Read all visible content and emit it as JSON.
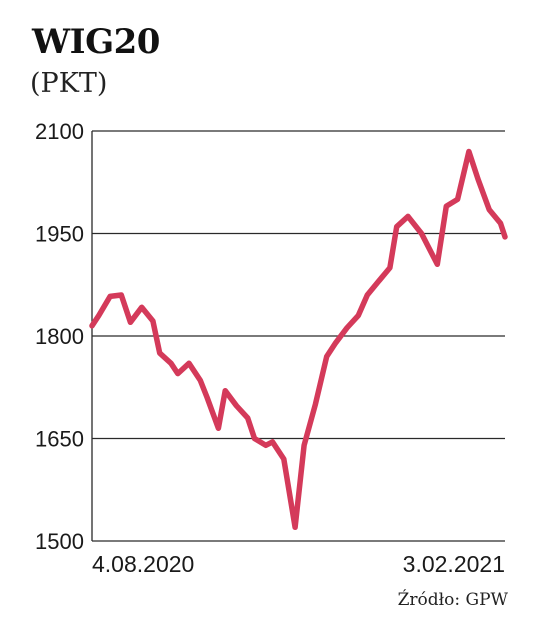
{
  "header": {
    "title": "WIG20",
    "subtitle": "(PKT)",
    "source": "Źródło: GPW"
  },
  "chart_data": {
    "type": "line",
    "title": "WIG20",
    "ylabel": "(PKT)",
    "xlabel": "",
    "ylim": [
      1500,
      2100
    ],
    "yticks": [
      2100,
      1950,
      1800,
      1650,
      1500
    ],
    "xtick_labels": [
      "4.08.2020",
      "3.02.2021"
    ],
    "grid": true,
    "line_color": "#d43a5a",
    "series": [
      {
        "name": "",
        "x": [
          "2020-08-04",
          "2020-08-07",
          "2020-08-12",
          "2020-08-17",
          "2020-08-21",
          "2020-08-26",
          "2020-08-31",
          "2020-09-03",
          "2020-09-08",
          "2020-09-11",
          "2020-09-16",
          "2020-09-21",
          "2020-09-24",
          "2020-09-29",
          "2020-10-02",
          "2020-10-07",
          "2020-10-12",
          "2020-10-15",
          "2020-10-20",
          "2020-10-23",
          "2020-10-28",
          "2020-11-02",
          "2020-11-06",
          "2020-11-11",
          "2020-11-16",
          "2020-11-20",
          "2020-11-25",
          "2020-11-30",
          "2020-12-04",
          "2020-12-09",
          "2020-12-14",
          "2020-12-17",
          "2020-12-22",
          "2020-12-28",
          "2021-01-04",
          "2021-01-08",
          "2021-01-13",
          "2021-01-18",
          "2021-01-22",
          "2021-01-27",
          "2021-02-01",
          "2021-02-03"
        ],
        "values": [
          1815,
          1830,
          1858,
          1860,
          1820,
          1842,
          1822,
          1775,
          1760,
          1745,
          1760,
          1735,
          1710,
          1665,
          1720,
          1698,
          1680,
          1650,
          1640,
          1645,
          1620,
          1520,
          1640,
          1700,
          1770,
          1790,
          1812,
          1830,
          1860,
          1880,
          1900,
          1960,
          1975,
          1950,
          1905,
          1990,
          2000,
          2070,
          2030,
          1985,
          1965,
          1945
        ]
      }
    ]
  }
}
